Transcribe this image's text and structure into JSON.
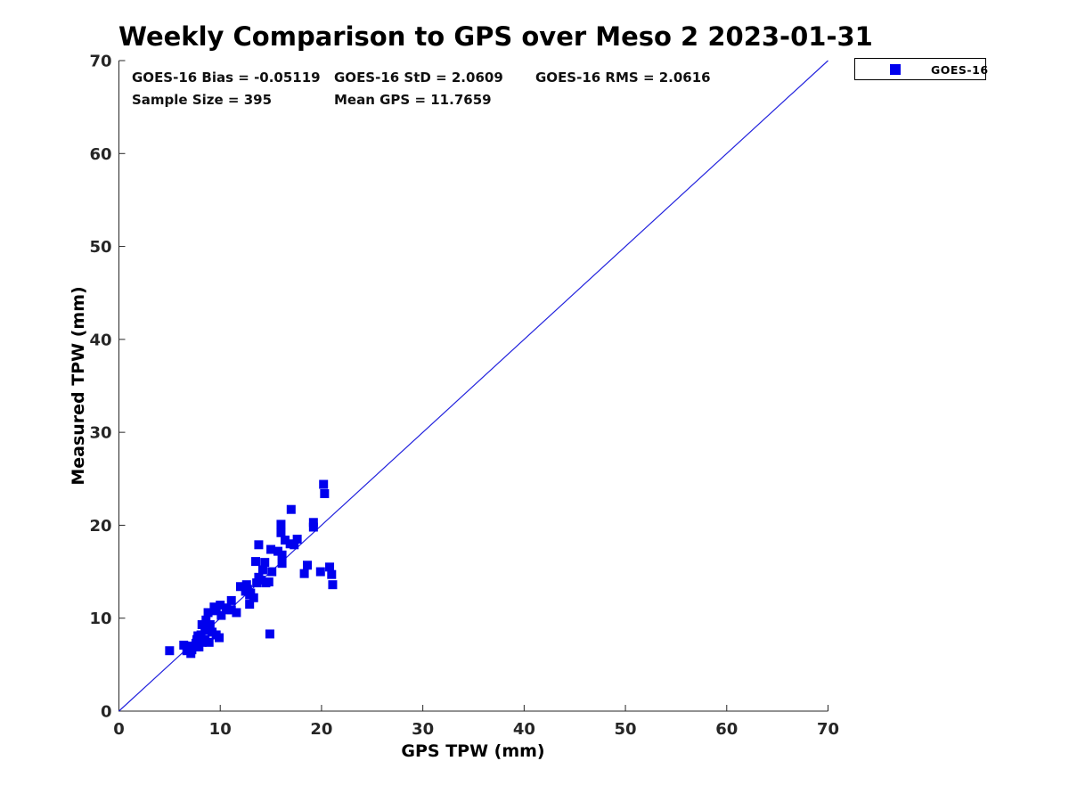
{
  "figure": {
    "title": "Weekly Comparison to GPS over Meso 2 2023-01-31",
    "stats_labels": {
      "bias": "GOES-16 Bias = -0.05119",
      "std": "GOES-16 StD = 2.0609",
      "rms": "GOES-16 RMS = 2.0616",
      "sample_size": "Sample Size = 395",
      "mean_gps": "Mean GPS = 11.7659"
    },
    "legend": {
      "label": "GOES-16",
      "marker_color": "#0000ee"
    }
  },
  "chart_data": {
    "type": "scatter",
    "title": "Weekly Comparison to GPS over Meso 2 2023-01-31",
    "xlabel": "GPS TPW (mm)",
    "ylabel": "Measured TPW (mm)",
    "xlim": [
      0,
      70
    ],
    "ylim": [
      0,
      70
    ],
    "xticks": [
      0,
      10,
      20,
      30,
      40,
      50,
      60,
      70
    ],
    "yticks": [
      0,
      10,
      20,
      30,
      40,
      50,
      60,
      70
    ],
    "grid": false,
    "legend_position": "outside-top-right",
    "axis_color": "#262626",
    "reference_line": {
      "type": "identity",
      "from": [
        0,
        0
      ],
      "to": [
        70,
        70
      ],
      "color": "#2222dd"
    },
    "stats": {
      "goes16_bias": -0.05119,
      "goes16_std": 2.0609,
      "goes16_rms": 2.0616,
      "sample_size": 395,
      "mean_gps": 11.7659
    },
    "series": [
      {
        "name": "GOES-16",
        "marker": "square",
        "marker_size_px": 10,
        "color": "#0000ee",
        "points": [
          [
            5.0,
            6.5
          ],
          [
            6.4,
            7.1
          ],
          [
            6.7,
            6.5
          ],
          [
            6.9,
            7.0
          ],
          [
            7.1,
            6.2
          ],
          [
            7.2,
            6.6
          ],
          [
            7.6,
            6.9
          ],
          [
            7.6,
            7.3
          ],
          [
            7.9,
            6.9
          ],
          [
            8.2,
            7.4
          ],
          [
            7.7,
            7.7
          ],
          [
            7.8,
            8.1
          ],
          [
            8.1,
            8.2
          ],
          [
            8.5,
            7.7
          ],
          [
            8.9,
            7.4
          ],
          [
            8.5,
            8.7
          ],
          [
            8.2,
            9.3
          ],
          [
            8.6,
            9.8
          ],
          [
            9.0,
            9.3
          ],
          [
            9.2,
            8.5
          ],
          [
            9.6,
            8.2
          ],
          [
            9.9,
            7.9
          ],
          [
            8.8,
            9.0
          ],
          [
            10.1,
            10.3
          ],
          [
            10.7,
            10.9
          ],
          [
            9.6,
            10.8
          ],
          [
            8.8,
            10.6
          ],
          [
            9.4,
            11.2
          ],
          [
            10.0,
            11.4
          ],
          [
            10.6,
            11.1
          ],
          [
            11.1,
            10.9
          ],
          [
            11.6,
            10.6
          ],
          [
            11.1,
            11.9
          ],
          [
            12.0,
            13.4
          ],
          [
            12.6,
            13.6
          ],
          [
            12.7,
            13.1
          ],
          [
            12.5,
            12.9
          ],
          [
            13.0,
            12.7
          ],
          [
            12.9,
            12.5
          ],
          [
            13.3,
            12.2
          ],
          [
            12.9,
            11.5
          ],
          [
            13.6,
            13.8
          ],
          [
            14.0,
            14.1
          ],
          [
            14.8,
            13.9
          ],
          [
            13.8,
            14.4
          ],
          [
            14.5,
            13.8
          ],
          [
            13.5,
            16.1
          ],
          [
            14.4,
            16.0
          ],
          [
            14.2,
            15.2
          ],
          [
            15.1,
            15.0
          ],
          [
            16.1,
            15.9
          ],
          [
            16.1,
            16.8
          ],
          [
            13.8,
            17.9
          ],
          [
            15.0,
            17.4
          ],
          [
            15.7,
            17.2
          ],
          [
            16.4,
            18.4
          ],
          [
            16.9,
            18.0
          ],
          [
            17.3,
            17.9
          ],
          [
            17.6,
            18.5
          ],
          [
            16.0,
            20.1
          ],
          [
            16.0,
            19.2
          ],
          [
            17.0,
            21.7
          ],
          [
            19.2,
            20.3
          ],
          [
            19.2,
            19.8
          ],
          [
            20.2,
            24.4
          ],
          [
            20.3,
            23.4
          ],
          [
            18.6,
            15.7
          ],
          [
            18.3,
            14.8
          ],
          [
            19.9,
            15.0
          ],
          [
            20.8,
            15.5
          ],
          [
            21.0,
            14.7
          ],
          [
            21.1,
            13.6
          ],
          [
            14.9,
            8.3
          ]
        ]
      }
    ]
  }
}
